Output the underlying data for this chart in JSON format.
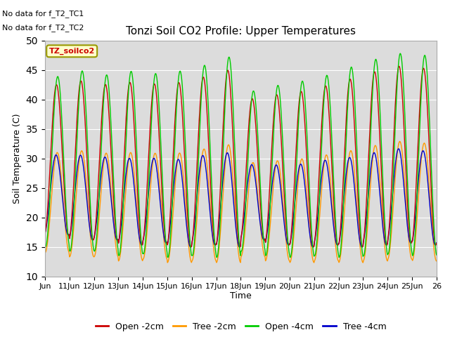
{
  "title": "Tonzi Soil CO2 Profile: Upper Temperatures",
  "ylabel": "Soil Temperature (C)",
  "xlabel": "Time",
  "ylim": [
    10,
    50
  ],
  "yticks": [
    10,
    15,
    20,
    25,
    30,
    35,
    40,
    45,
    50
  ],
  "bg_color": "#dcdcdc",
  "fig_color": "#ffffff",
  "annotations": [
    "No data for f_T2_TC1",
    "No data for f_T2_TC2"
  ],
  "legend_label_text": "TZ_soilco2",
  "legend_bg": "#ffffcc",
  "legend_border": "#999900",
  "colors": {
    "open_2cm": "#cc0000",
    "tree_2cm": "#ff9900",
    "open_4cm": "#00cc00",
    "tree_4cm": "#0000cc"
  },
  "series_labels": [
    "Open -2cm",
    "Tree -2cm",
    "Open -4cm",
    "Tree -4cm"
  ],
  "x_tick_labels": [
    "Jun",
    "11Jun",
    "12Jun",
    "13Jun",
    "14Jun",
    "15Jun",
    "16Jun",
    "17Jun",
    "18Jun",
    "19Jun",
    "20Jun",
    "21Jun",
    "22Jun",
    "23Jun",
    "24Jun",
    "25Jun",
    "26"
  ],
  "n_days": 16,
  "points_per_day": 48
}
